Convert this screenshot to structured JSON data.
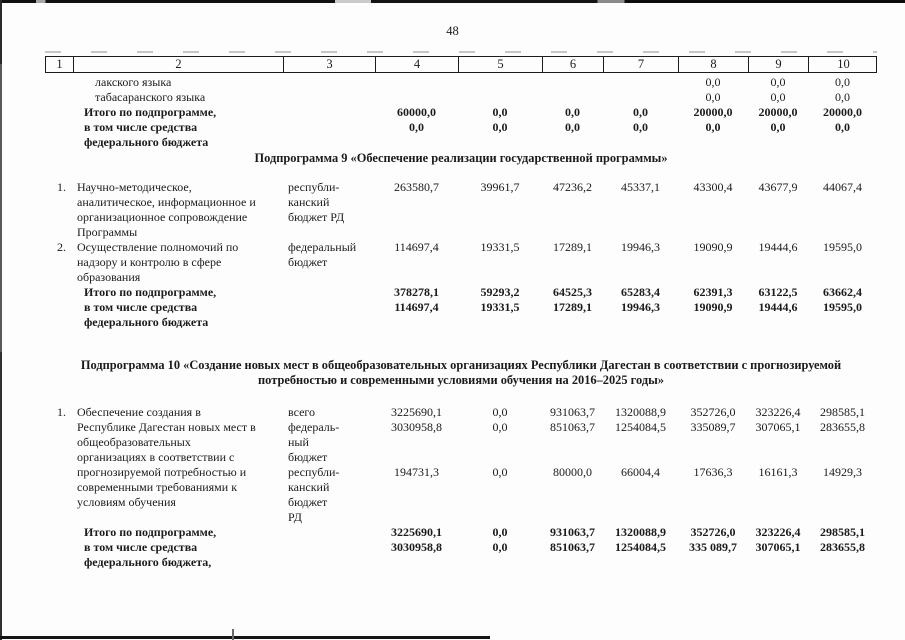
{
  "page": {
    "number": "48"
  },
  "table": {
    "header_columns": [
      "1",
      "2",
      "3",
      "4",
      "5",
      "6",
      "7",
      "8",
      "9",
      "10"
    ]
  },
  "sections": [
    {
      "heading_lines": null,
      "lines": [
        {
          "b": 0,
          "ind": 2,
          "c": [
            "",
            "лакского языка",
            "",
            "",
            "",
            "",
            "",
            "0,0",
            "0,0",
            "0,0"
          ]
        },
        {
          "b": 0,
          "ind": 2,
          "c": [
            "",
            "табасаранского языка",
            "",
            "",
            "",
            "",
            "",
            "0,0",
            "0,0",
            "0,0"
          ]
        },
        {
          "b": 1,
          "ind": 1,
          "c": [
            "",
            "Итого по подпрограмме,",
            "",
            "60000,0",
            "0,0",
            "0,0",
            "0,0",
            "20000,0",
            "20000,0",
            "20000,0"
          ]
        },
        {
          "b": 1,
          "ind": 1,
          "c": [
            "",
            "в том числе средства",
            "",
            "0,0",
            "0,0",
            "0,0",
            "0,0",
            "0,0",
            "0,0",
            "0,0"
          ]
        },
        {
          "b": 1,
          "ind": 1,
          "c": [
            "",
            "федерального бюджета",
            "",
            "",
            "",
            "",
            "",
            "",
            "",
            ""
          ]
        }
      ]
    },
    {
      "heading_lines": [
        "Подпрограмма 9 «Обеспечение реализации государственной программы»"
      ],
      "lines": [
        {
          "b": 0,
          "ind": 0,
          "c": [
            "1.",
            "Научно-методическое,",
            "республи-",
            "263580,7",
            "39961,7",
            "47236,2",
            "45337,1",
            "43300,4",
            "43677,9",
            "44067,4"
          ]
        },
        {
          "b": 0,
          "ind": 0,
          "c": [
            "",
            "аналитическое, информационное и",
            "канский",
            "",
            "",
            "",
            "",
            "",
            "",
            ""
          ]
        },
        {
          "b": 0,
          "ind": 0,
          "c": [
            "",
            "организационное сопровождение",
            "бюджет РД",
            "",
            "",
            "",
            "",
            "",
            "",
            ""
          ]
        },
        {
          "b": 0,
          "ind": 0,
          "c": [
            "",
            "Программы",
            "",
            "",
            "",
            "",
            "",
            "",
            "",
            ""
          ]
        },
        {
          "b": 0,
          "ind": 0,
          "c": [
            "2.",
            "Осуществление полномочий по",
            "федеральный",
            "114697,4",
            "19331,5",
            "17289,1",
            "19946,3",
            "19090,9",
            "19444,6",
            "19595,0"
          ]
        },
        {
          "b": 0,
          "ind": 0,
          "c": [
            "",
            "надзору и контролю в сфере",
            "бюджет",
            "",
            "",
            "",
            "",
            "",
            "",
            ""
          ]
        },
        {
          "b": 0,
          "ind": 0,
          "c": [
            "",
            "образования",
            "",
            "",
            "",
            "",
            "",
            "",
            "",
            ""
          ]
        },
        {
          "b": 1,
          "ind": 1,
          "c": [
            "",
            "Итого по подпрограмме,",
            "",
            "378278,1",
            "59293,2",
            "64525,3",
            "65283,4",
            "62391,3",
            "63122,5",
            "63662,4"
          ]
        },
        {
          "b": 1,
          "ind": 1,
          "c": [
            "",
            "в том числе средства",
            "",
            "114697,4",
            "19331,5",
            "17289,1",
            "19946,3",
            "19090,9",
            "19444,6",
            "19595,0"
          ]
        },
        {
          "b": 1,
          "ind": 1,
          "c": [
            "",
            "федерального бюджета",
            "",
            "",
            "",
            "",
            "",
            "",
            "",
            ""
          ]
        }
      ]
    },
    {
      "heading_lines": [
        "Подпрограмма 10 «Создание новых мест в общеобразовательных организациях Республики Дагестан в соответствии с прогнозируемой",
        "потребностью и современными условиями обучения на 2016–2025 годы»"
      ],
      "lines": [
        {
          "b": 0,
          "ind": 0,
          "c": [
            "1.",
            "Обеспечение создания в",
            "всего",
            "3225690,1",
            "0,0",
            "931063,7",
            "1320088,9",
            "352726,0",
            "323226,4",
            "298585,1"
          ]
        },
        {
          "b": 0,
          "ind": 0,
          "c": [
            "",
            "Республике Дагестан новых мест в",
            "федераль-",
            "3030958,8",
            "0,0",
            "851063,7",
            "1254084,5",
            "335089,7",
            "307065,1",
            "283655,8"
          ]
        },
        {
          "b": 0,
          "ind": 0,
          "c": [
            "",
            "общеобразовательных",
            "ный",
            "",
            "",
            "",
            "",
            "",
            "",
            ""
          ]
        },
        {
          "b": 0,
          "ind": 0,
          "c": [
            "",
            "организациях в соответствии с",
            "бюджет",
            "",
            "",
            "",
            "",
            "",
            "",
            ""
          ]
        },
        {
          "b": 0,
          "ind": 0,
          "c": [
            "",
            "прогнозируемой потребностью и",
            "республи-",
            "194731,3",
            "0,0",
            "80000,0",
            "66004,4",
            "17636,3",
            "16161,3",
            "14929,3"
          ]
        },
        {
          "b": 0,
          "ind": 0,
          "c": [
            "",
            "современными требованиями к",
            "канский",
            "",
            "",
            "",
            "",
            "",
            "",
            ""
          ]
        },
        {
          "b": 0,
          "ind": 0,
          "c": [
            "",
            "условиям обучения",
            "бюджет",
            "",
            "",
            "",
            "",
            "",
            "",
            ""
          ]
        },
        {
          "b": 0,
          "ind": 0,
          "c": [
            "",
            "",
            "РД",
            "",
            "",
            "",
            "",
            "",
            "",
            ""
          ]
        },
        {
          "b": 1,
          "ind": 1,
          "c": [
            "",
            "Итого по подпрограмме,",
            "",
            "3225690,1",
            "0,0",
            "931063,7",
            "1320088,9",
            "352726,0",
            "323226,4",
            "298585,1"
          ]
        },
        {
          "b": 1,
          "ind": 1,
          "c": [
            "",
            "в том числе средства",
            "",
            "3030958,8",
            "0,0",
            "851063,7",
            "1254084,5",
            "335 089,7",
            "307065,1",
            "283655,8"
          ]
        },
        {
          "b": 1,
          "ind": 1,
          "c": [
            "",
            "федерального бюджета,",
            "",
            "",
            "",
            "",
            "",
            "",
            "",
            ""
          ]
        }
      ]
    }
  ]
}
